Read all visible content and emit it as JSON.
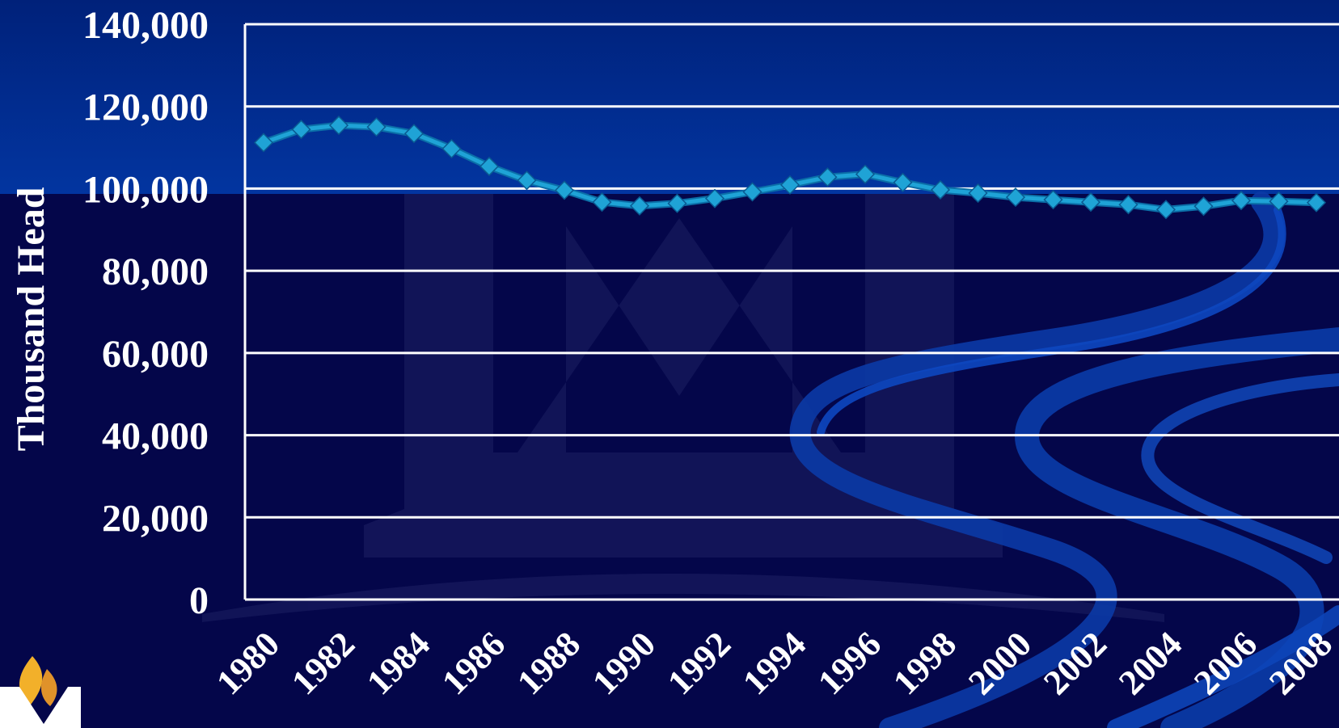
{
  "chart_data": {
    "type": "line",
    "title": "",
    "xlabel": "",
    "ylabel": "Thousand Head",
    "ylim": [
      0,
      140000
    ],
    "yticks": [
      0,
      20000,
      40000,
      60000,
      80000,
      100000,
      120000,
      140000
    ],
    "ytick_labels": [
      "0",
      "20,000",
      "40,000",
      "60,000",
      "80,000",
      "100,000",
      "120,000",
      "140,000"
    ],
    "xlim": [
      1980,
      2008
    ],
    "xtick_labels": [
      "1980",
      "1982",
      "1984",
      "1986",
      "1988",
      "1990",
      "1992",
      "1994",
      "1996",
      "1998",
      "2000",
      "2002",
      "2004",
      "2006",
      "2008"
    ],
    "grid": true,
    "series": [
      {
        "x": [
          1980,
          1981,
          1982,
          1983,
          1984,
          1985,
          1986,
          1987,
          1988,
          1989,
          1990,
          1991,
          1992,
          1993,
          1994,
          1995,
          1996,
          1997,
          1998,
          1999,
          2000,
          2001,
          2002,
          2003,
          2004,
          2005,
          2006,
          2007,
          2008
        ],
        "values": [
          111200,
          114400,
          115400,
          115000,
          113400,
          109700,
          105400,
          102000,
          99600,
          96700,
          95800,
          96400,
          97600,
          99200,
          100900,
          102800,
          103500,
          101500,
          99700,
          98900,
          97900,
          97300,
          96700,
          96100,
          94900,
          95700,
          97100,
          96900,
          96600
        ],
        "color": "#1fa3d6"
      }
    ],
    "colors": {
      "background": "#04064a",
      "band": "#012b8c",
      "grid": "#ffffff",
      "swoosh": "#0a3ca8"
    }
  }
}
